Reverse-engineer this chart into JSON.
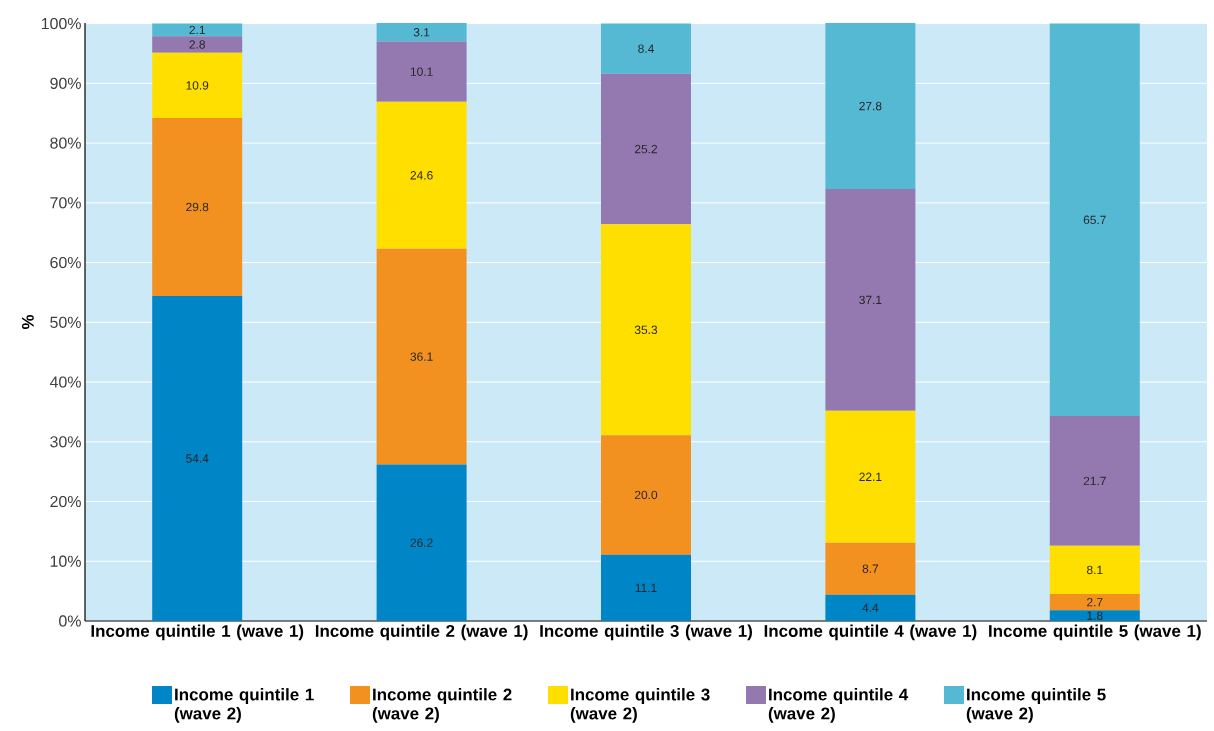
{
  "chart_data": {
    "type": "bar",
    "stacked": true,
    "ylabel": "%",
    "categories": [
      "Income quintile 1 (wave 1)",
      "Income quintile 2 (wave 1)",
      "Income quintile 3 (wave 1)",
      "Income quintile 4 (wave 1)",
      "Income quintile 5 (wave 1)"
    ],
    "series": [
      {
        "name": "Income quintile 1 (wave 2)",
        "color": "#0085c7",
        "values": [
          54.4,
          26.2,
          11.1,
          4.4,
          1.8
        ],
        "value_labels": [
          "54.4",
          "26.2",
          "11.1",
          "4.4",
          "1.8"
        ]
      },
      {
        "name": "Income quintile 2 (wave 2)",
        "color": "#f39120",
        "values": [
          29.8,
          36.1,
          20.0,
          8.7,
          2.7
        ],
        "value_labels": [
          "29.8",
          "36.1",
          "20.0",
          "8.7",
          "2.7"
        ]
      },
      {
        "name": "Income quintile 3 (wave 2)",
        "color": "#ffdf00",
        "values": [
          10.9,
          24.6,
          35.3,
          22.1,
          8.1
        ],
        "value_labels": [
          "10.9",
          "24.6",
          "35.3",
          "22.1",
          "8.1"
        ]
      },
      {
        "name": "Income quintile 4 (wave 2)",
        "color": "#9479b0",
        "values": [
          2.8,
          10.1,
          25.2,
          37.1,
          21.7
        ],
        "value_labels": [
          "2.8",
          "10.1",
          "25.2",
          "37.1",
          "21.7"
        ]
      },
      {
        "name": "Income quintile 5 (wave 2)",
        "color": "#56b9d3",
        "values": [
          2.1,
          3.1,
          8.4,
          27.8,
          65.7
        ],
        "value_labels": [
          "2.1",
          "3.1",
          "8.4",
          "27.8",
          "65.7"
        ]
      }
    ],
    "ylim": [
      0,
      100.1
    ],
    "yticks": [
      {
        "value": 0,
        "label": "0%"
      },
      {
        "value": 10,
        "label": "10%"
      },
      {
        "value": 20,
        "label": "20%"
      },
      {
        "value": 30,
        "label": "30%"
      },
      {
        "value": 40,
        "label": "40%"
      },
      {
        "value": 50,
        "label": "50%"
      },
      {
        "value": 60,
        "label": "60%"
      },
      {
        "value": 70,
        "label": "70%"
      },
      {
        "value": 80,
        "label": "80%"
      },
      {
        "value": 90,
        "label": "90%"
      },
      {
        "value": 100,
        "label": "100%"
      }
    ],
    "grid": "y",
    "legend": "bottom"
  }
}
